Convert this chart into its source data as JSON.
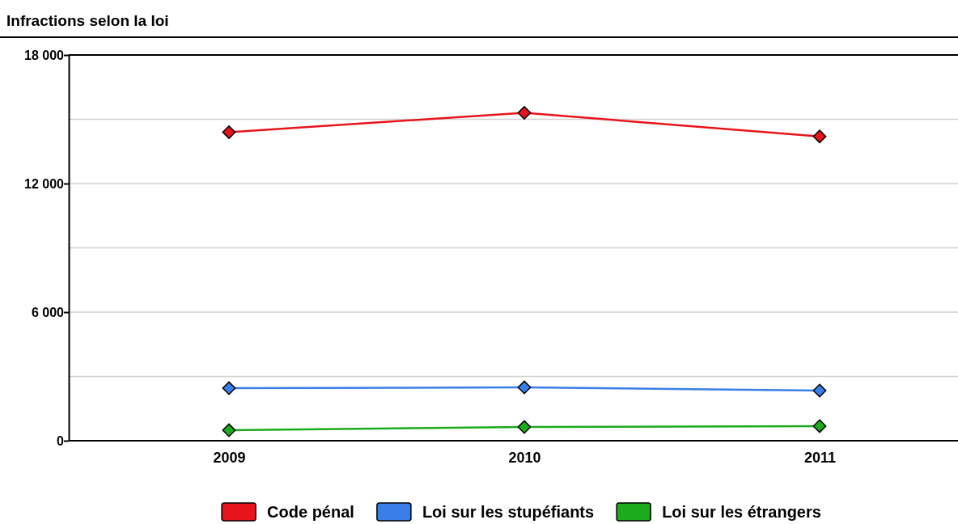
{
  "chart_data": {
    "type": "line",
    "title": "Infractions selon la loi",
    "categories": [
      "2009",
      "2010",
      "2011"
    ],
    "series": [
      {
        "name": "Code pénal",
        "color": "#e8141c",
        "values": [
          14400,
          15300,
          14200
        ]
      },
      {
        "name": "Loi sur les stupéfiants",
        "color": "#3a7ee8",
        "values": [
          2450,
          2490,
          2340
        ]
      },
      {
        "name": "Loi sur les étrangers",
        "color": "#1cab1c",
        "values": [
          490,
          640,
          680
        ]
      }
    ],
    "ylim": [
      0,
      18000
    ],
    "yticks": [
      {
        "value": 0,
        "label": "0"
      },
      {
        "value": 3000,
        "label": null
      },
      {
        "value": 6000,
        "label": "6 000"
      },
      {
        "value": 9000,
        "label": null
      },
      {
        "value": 12000,
        "label": "12 000"
      },
      {
        "value": 15000,
        "label": null
      },
      {
        "value": 18000,
        "label": "18 000"
      }
    ],
    "grid": true,
    "legend": "bottom",
    "marker": "diamond",
    "line_style": "solid"
  }
}
